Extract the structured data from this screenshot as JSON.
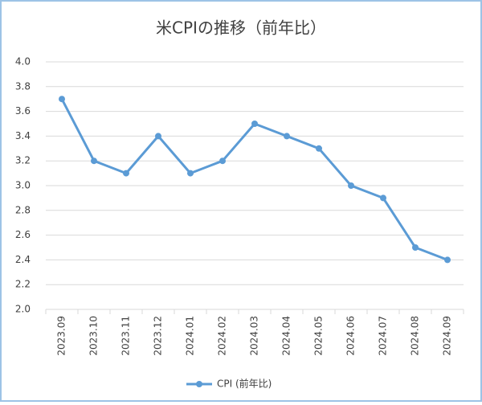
{
  "chart_data": {
    "type": "line",
    "title": "米CPIの推移（前年比）",
    "categories": [
      "2023.09",
      "2023.10",
      "2023.11",
      "2023.12",
      "2024.01",
      "2024.02",
      "2024.03",
      "2024.04",
      "2024.05",
      "2024.06",
      "2024.07",
      "2024.08",
      "2024.09"
    ],
    "series": [
      {
        "name": "CPI (前年比)",
        "color": "#5b9bd5",
        "values": [
          3.7,
          3.2,
          3.1,
          3.4,
          3.1,
          3.2,
          3.5,
          3.4,
          3.3,
          3.0,
          2.9,
          2.5,
          2.4
        ]
      }
    ],
    "ylim": [
      2.0,
      4.0
    ],
    "yticks": [
      {
        "value": 2.0,
        "label": "2.0"
      },
      2.2,
      2.4,
      2.6,
      2.8,
      {
        "value": 3.0,
        "label": "3.0"
      },
      3.2,
      3.4,
      3.6,
      3.8,
      {
        "value": 4.0,
        "label": "4.0"
      }
    ],
    "grid": true,
    "legend": "bottom"
  }
}
